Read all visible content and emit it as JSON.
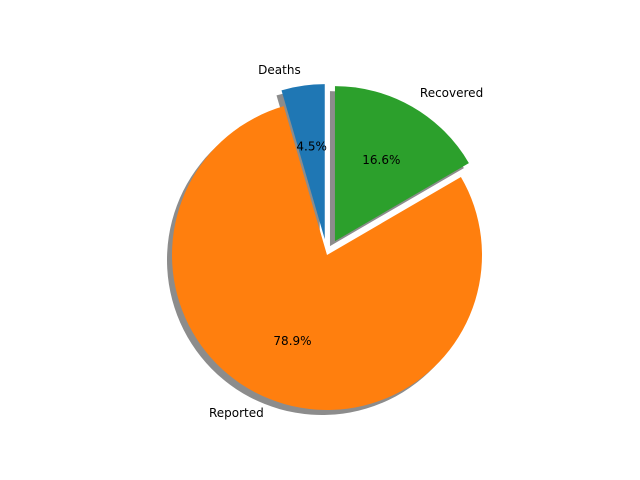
{
  "chart_data": {
    "type": "pie",
    "title": "",
    "labels": [
      "Deaths",
      "Reported",
      "Recovered"
    ],
    "values": [
      4.5,
      78.9,
      16.6
    ],
    "pct_labels": [
      "4.5%",
      "78.9%",
      "16.6%"
    ],
    "colors": [
      "#1f77b4",
      "#ff7f0e",
      "#2ca02c"
    ],
    "exploded": [
      true,
      false,
      true
    ],
    "shadow": true,
    "start_angle_deg": 90,
    "direction": "counterclockwise",
    "legend": "none"
  }
}
